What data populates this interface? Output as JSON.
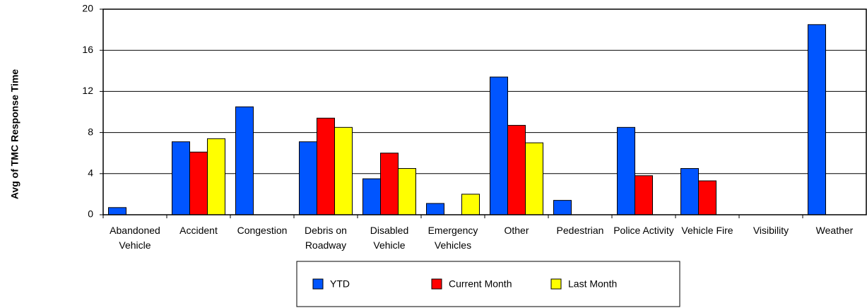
{
  "chart_data": {
    "type": "bar",
    "y_label": "Avg of TMC Response Time",
    "categories": [
      "Abandoned Vehicle",
      "Accident",
      "Congestion",
      "Debris on Roadway",
      "Disabled Vehicle",
      "Emergency Vehicles",
      "Other",
      "Pedestrian",
      "Police Activity",
      "Vehicle Fire",
      "Visibility",
      "Weather"
    ],
    "series": [
      {
        "name": "YTD",
        "color": "#0055ff",
        "values": [
          0.7,
          7.1,
          10.5,
          7.1,
          3.5,
          1.1,
          13.4,
          1.4,
          8.5,
          4.5,
          0,
          18.5
        ]
      },
      {
        "name": "Current Month",
        "color": "#ff0000",
        "values": [
          0,
          6.1,
          0,
          9.4,
          6.0,
          0,
          8.7,
          0,
          3.8,
          3.3,
          0,
          0
        ]
      },
      {
        "name": "Last Month",
        "color": "#ffff00",
        "values": [
          0,
          7.4,
          0,
          8.5,
          4.5,
          2.0,
          7.0,
          0,
          0,
          0,
          0,
          0
        ]
      }
    ],
    "ylim": [
      0,
      20
    ],
    "yticks": [
      0,
      4,
      8,
      12,
      16,
      20
    ],
    "grid": true,
    "legend": "bottom"
  }
}
